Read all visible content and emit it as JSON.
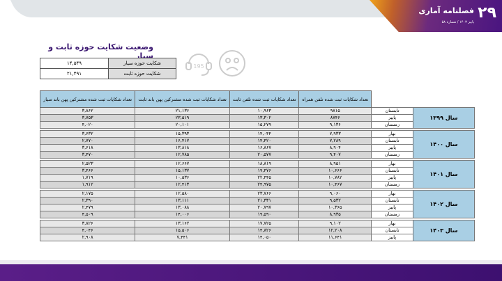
{
  "header": {
    "issue_number": "۲۹",
    "publication": "فصلنامه آماری",
    "subtitle": "پاییز ۱۴۰۳ / شماره ۵۸"
  },
  "title": "وضعیت شکایت حوزه ثابت و سیار",
  "icons": {
    "sad-face": "sad-face-icon",
    "support-195": "headset-195-icon",
    "support_number": "195"
  },
  "summary": [
    {
      "label": "شکایت حوزه سیار",
      "value": "۱۴,۵۴۹"
    },
    {
      "label": "شکایت حوزه ثابت",
      "value": "۲۱,۴۹۱"
    }
  ],
  "table": {
    "headers": [
      "تعداد شکایات ثبت شده تلفن همراه",
      "تعداد شکایات ثبت شده تلفن ثابت",
      "تعداد شکایات ثبت شده مشترکین پهن باند ثابت",
      "تعداد شکایات ثبت شده مشترکین پهن باند سیار"
    ],
    "groups": [
      {
        "year": "سال ۱۳۹۹",
        "rows": [
          {
            "season": "تابستان",
            "v": [
              "۹۸۱۵",
              "۱۰,۹۶۳",
              "۲۱,۱۳۶",
              "۳,۸۶۲"
            ]
          },
          {
            "season": "پاییز",
            "v": [
              "۸۷۴۶",
              "۱۳,۳۰۲",
              "۲۳,۵۱۹",
              "۳,۷۵۳"
            ]
          },
          {
            "season": "زمستان",
            "v": [
              "۹,۱۳۶",
              "۱۵,۲۷۹",
              "۲۰,۱۰۱",
              "۴,۰۲۰"
            ]
          }
        ]
      },
      {
        "year": "سال ۱۴۰۰",
        "rows": [
          {
            "season": "بهار",
            "v": [
              "۷,۹۳۳",
              "۱۴,۰۴۴",
              "۱۵,۳۹۳",
              "۳,۶۳۲"
            ]
          },
          {
            "season": "تابستان",
            "v": [
              "۷,۲۸۹",
              "۱۴,۴۲۰",
              "۱۶,۴۱۷",
              "۲,۷۷۰"
            ]
          },
          {
            "season": "پاییز",
            "v": [
              "۸,۹۰۴",
              "۱۶,۸۶۷",
              "۱۳,۸۱۸",
              "۳,۶۱۸"
            ]
          },
          {
            "season": "زمستان",
            "v": [
              "۹,۴۰۷",
              "۲۰,۵۷۷",
              "۱۲,۷۸۵",
              "۳,۴۷۰"
            ]
          }
        ]
      },
      {
        "year": "سال ۱۴۰۱",
        "rows": [
          {
            "season": "بهار",
            "v": [
              "۸,۹۵۱",
              "۱۸,۸۱۹",
              "۱۲,۶۶۷",
              "۲,۵۲۳"
            ]
          },
          {
            "season": "تابستان",
            "v": [
              "۱۰,۶۶۶",
              "۱۹,۴۷۶",
              "۱۵,۱۳۷",
              "۳,۴۶۶"
            ]
          },
          {
            "season": "پاییز",
            "v": [
              "۱۰,۷۸۲",
              "۲۲,۴۴۵",
              "۱۰,۵۳۶",
              "۱,۷۱۹"
            ]
          },
          {
            "season": "زمستان",
            "v": [
              "۱۰,۴۶۷",
              "۲۴,۹۷۵",
              "۱۲,۴۱۳",
              "۱,۹۱۲"
            ]
          }
        ]
      },
      {
        "year": "سال ۱۴۰۲",
        "rows": [
          {
            "season": "بهار",
            "v": [
              "۹,۰۶۰",
              "۲۳,۷۶۶",
              "۱۲,۵۸۰",
              "۲,۱۷۵"
            ]
          },
          {
            "season": "تابستان",
            "v": [
              "۹,۵۳۲",
              "۲۱,۳۳۱",
              "۱۳,۱۱۱",
              "۲,۳۹۰"
            ]
          },
          {
            "season": "پاییز",
            "v": [
              "۱۰,۳۶۵",
              "۲۰,۷۹۷",
              "۱۳,۰۸۸",
              "۲,۴۷۹"
            ]
          },
          {
            "season": "زمستان",
            "v": [
              "۸,۹۳۵",
              "۱۹,۵۹۰",
              "۱۴,۰۰۶",
              "۴,۵۰۹"
            ]
          }
        ]
      },
      {
        "year": "سال ۱۴۰۳",
        "rows": [
          {
            "season": "بهار",
            "v": [
              "۹,۱۰۲",
              "۱۷,۷۲۵",
              "۱۳,۱۶۲",
              "۳,۸۲۶"
            ]
          },
          {
            "season": "تابستان",
            "v": [
              "۱۲,۲۰۸",
              "۱۴,۸۲۶",
              "۱۵,۵۰۶",
              "۴,۰۴۶"
            ]
          },
          {
            "season": "پاییز",
            "v": [
              "۱۱,۶۴۱",
              "۱۴,۰۵۰",
              "۷,۴۴۱",
              "۲,۹۰۸"
            ]
          }
        ]
      }
    ]
  }
}
